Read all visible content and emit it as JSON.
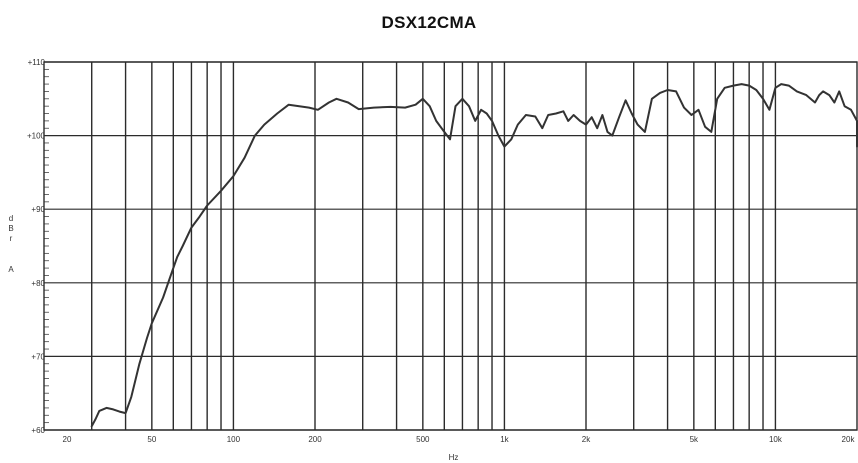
{
  "chart_data": {
    "type": "line",
    "title": "DSX12CMA",
    "xlabel": "Hz",
    "ylabel_chars": [
      "d",
      "B",
      "r",
      "A"
    ],
    "x_scale": "log",
    "xlim": [
      20,
      20000
    ],
    "ylim": [
      60,
      110
    ],
    "grid": true,
    "x_ticks": [
      {
        "value": 20,
        "label": "20"
      },
      {
        "value": 50,
        "label": "50"
      },
      {
        "value": 100,
        "label": "100"
      },
      {
        "value": 200,
        "label": "200"
      },
      {
        "value": 500,
        "label": "500"
      },
      {
        "value": 1000,
        "label": "1k"
      },
      {
        "value": 2000,
        "label": "2k"
      },
      {
        "value": 5000,
        "label": "5k"
      },
      {
        "value": 10000,
        "label": "10k"
      },
      {
        "value": 20000,
        "label": "20k"
      }
    ],
    "x_gridlines": [
      30,
      40,
      50,
      60,
      70,
      80,
      90,
      100,
      200,
      300,
      400,
      500,
      600,
      700,
      800,
      900,
      1000,
      2000,
      3000,
      4000,
      5000,
      6000,
      7000,
      8000,
      9000,
      10000
    ],
    "y_ticks": [
      {
        "value": 60,
        "label": "+60"
      },
      {
        "value": 70,
        "label": "+70"
      },
      {
        "value": 80,
        "label": "+80"
      },
      {
        "value": 90,
        "label": "+90"
      },
      {
        "value": 100,
        "label": "+100"
      },
      {
        "value": 110,
        "label": "+110"
      }
    ],
    "series": [
      {
        "color": "#333333",
        "points": [
          [
            30,
            60.5
          ],
          [
            31,
            61.5
          ],
          [
            32,
            62.6
          ],
          [
            34,
            63.0
          ],
          [
            36,
            62.8
          ],
          [
            38,
            62.5
          ],
          [
            40,
            62.3
          ],
          [
            42,
            64.5
          ],
          [
            45,
            69.0
          ],
          [
            48,
            72.5
          ],
          [
            50,
            74.5
          ],
          [
            55,
            78.0
          ],
          [
            60,
            82.0
          ],
          [
            62,
            83.5
          ],
          [
            65,
            85.0
          ],
          [
            70,
            87.5
          ],
          [
            75,
            89.0
          ],
          [
            80,
            90.5
          ],
          [
            90,
            92.5
          ],
          [
            100,
            94.5
          ],
          [
            110,
            97.0
          ],
          [
            120,
            100.0
          ],
          [
            130,
            101.5
          ],
          [
            145,
            103.0
          ],
          [
            160,
            104.2
          ],
          [
            175,
            104.0
          ],
          [
            190,
            103.8
          ],
          [
            205,
            103.5
          ],
          [
            225,
            104.5
          ],
          [
            240,
            105.0
          ],
          [
            265,
            104.5
          ],
          [
            290,
            103.6
          ],
          [
            330,
            103.8
          ],
          [
            380,
            103.9
          ],
          [
            430,
            103.8
          ],
          [
            470,
            104.2
          ],
          [
            500,
            105.0
          ],
          [
            530,
            104.0
          ],
          [
            560,
            102.0
          ],
          [
            600,
            100.5
          ],
          [
            630,
            99.5
          ],
          [
            660,
            104.0
          ],
          [
            700,
            105.0
          ],
          [
            740,
            104.0
          ],
          [
            780,
            102.0
          ],
          [
            820,
            103.5
          ],
          [
            860,
            103.0
          ],
          [
            900,
            102.0
          ],
          [
            950,
            100.0
          ],
          [
            1000,
            98.5
          ],
          [
            1060,
            99.5
          ],
          [
            1120,
            101.5
          ],
          [
            1200,
            102.8
          ],
          [
            1300,
            102.6
          ],
          [
            1380,
            101.0
          ],
          [
            1450,
            102.8
          ],
          [
            1550,
            103.0
          ],
          [
            1650,
            103.3
          ],
          [
            1720,
            102.0
          ],
          [
            1800,
            102.8
          ],
          [
            1900,
            102.0
          ],
          [
            2000,
            101.5
          ],
          [
            2100,
            102.5
          ],
          [
            2200,
            101.0
          ],
          [
            2300,
            102.8
          ],
          [
            2400,
            100.5
          ],
          [
            2500,
            100.0
          ],
          [
            2650,
            102.5
          ],
          [
            2800,
            104.8
          ],
          [
            2950,
            103.0
          ],
          [
            3100,
            101.5
          ],
          [
            3300,
            100.5
          ],
          [
            3500,
            105.0
          ],
          [
            3750,
            105.8
          ],
          [
            4000,
            106.2
          ],
          [
            4300,
            106.0
          ],
          [
            4600,
            103.8
          ],
          [
            4900,
            102.8
          ],
          [
            5200,
            103.5
          ],
          [
            5500,
            101.2
          ],
          [
            5800,
            100.5
          ],
          [
            6100,
            105.0
          ],
          [
            6500,
            106.5
          ],
          [
            7000,
            106.8
          ],
          [
            7500,
            107.0
          ],
          [
            8000,
            106.8
          ],
          [
            8500,
            106.2
          ],
          [
            9000,
            105.0
          ],
          [
            9500,
            103.5
          ],
          [
            10000,
            106.5
          ],
          [
            10500,
            107.0
          ],
          [
            11200,
            106.8
          ],
          [
            12000,
            106.0
          ],
          [
            13000,
            105.5
          ],
          [
            14000,
            104.5
          ],
          [
            14500,
            105.5
          ],
          [
            15000,
            106.0
          ],
          [
            15800,
            105.5
          ],
          [
            16500,
            104.5
          ],
          [
            17200,
            106.0
          ],
          [
            18000,
            104.0
          ],
          [
            19000,
            103.5
          ],
          [
            20000,
            102.0
          ],
          [
            20500,
            98.5
          ]
        ]
      }
    ]
  }
}
